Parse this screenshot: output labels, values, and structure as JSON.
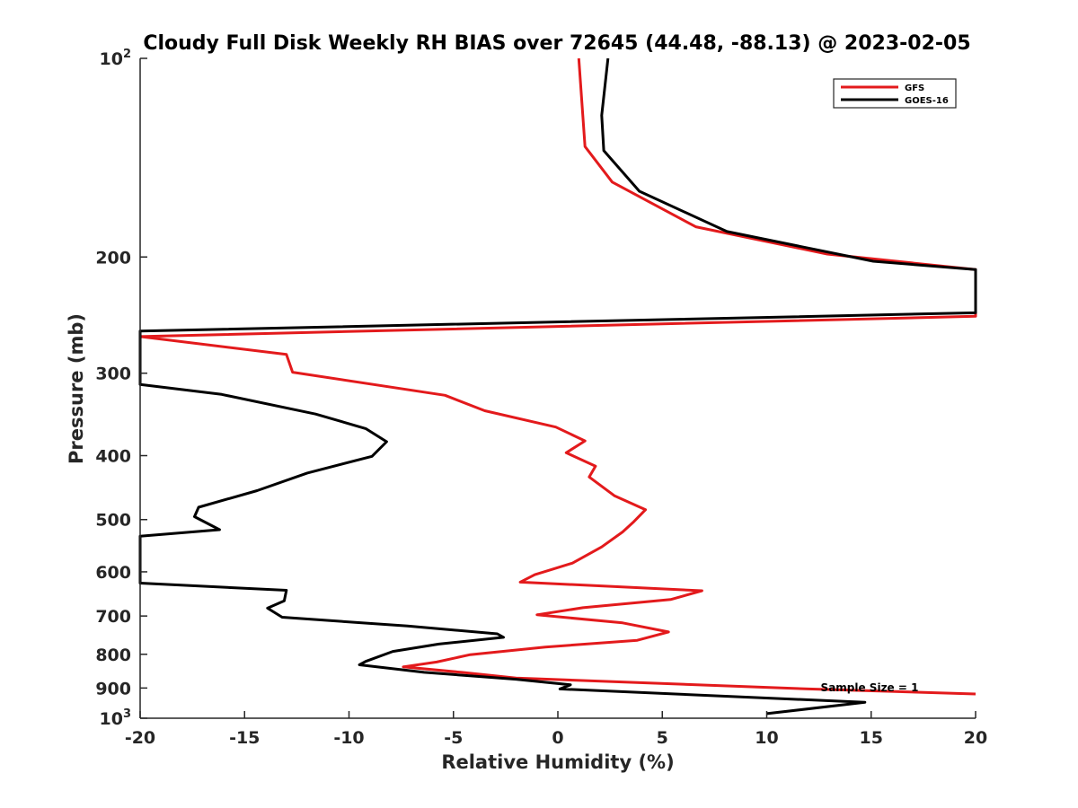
{
  "chart_data": {
    "type": "line",
    "title": "Cloudy Full Disk Weekly RH BIAS over 72645 (44.48, -88.13) @ 2023-02-05",
    "xlabel": "Relative Humidity (%)",
    "ylabel": "Pressure (mb)",
    "xlim": [
      -20,
      20
    ],
    "ylim": [
      100,
      1000
    ],
    "y_scale": "log",
    "y_reversed": true,
    "grid": false,
    "legend_position": "top-right",
    "x_ticks": [
      "-20",
      "-15",
      "-10",
      "-5",
      "0",
      "5",
      "10",
      "15",
      "20"
    ],
    "y_ticks": [
      {
        "value": 100,
        "base": "10",
        "exp": "2"
      },
      {
        "value": 200,
        "label": "200"
      },
      {
        "value": 300,
        "label": "300"
      },
      {
        "value": 400,
        "label": "400"
      },
      {
        "value": 500,
        "label": "500"
      },
      {
        "value": 600,
        "label": "600"
      },
      {
        "value": 700,
        "label": "700"
      },
      {
        "value": 800,
        "label": "800"
      },
      {
        "value": 900,
        "label": "900"
      },
      {
        "value": 1000,
        "base": "10",
        "exp": "3"
      }
    ],
    "series": [
      {
        "name": "GFS",
        "color": "#e31a1c",
        "points": [
          [
            1.0,
            100
          ],
          [
            1.3,
            136
          ],
          [
            2.6,
            154
          ],
          [
            6.6,
            180
          ],
          [
            12.9,
            198
          ],
          [
            20,
            209
          ],
          [
            20,
            246
          ],
          [
            -20,
            264
          ],
          [
            -13,
            281
          ],
          [
            -12.7,
            299
          ],
          [
            -5.4,
            324
          ],
          [
            -3.5,
            342
          ],
          [
            -0.1,
            362
          ],
          [
            1.3,
            380
          ],
          [
            0.4,
            396
          ],
          [
            1.8,
            415
          ],
          [
            1.5,
            431
          ],
          [
            2.7,
            460
          ],
          [
            4.2,
            483
          ],
          [
            3.6,
            505
          ],
          [
            3.1,
            522
          ],
          [
            2.1,
            550
          ],
          [
            0.7,
            582
          ],
          [
            -1.1,
            606
          ],
          [
            -1.8,
            622
          ],
          [
            6.9,
            641
          ],
          [
            5.4,
            661
          ],
          [
            1.2,
            680
          ],
          [
            -1.0,
            697
          ],
          [
            3.1,
            717
          ],
          [
            5.3,
            740
          ],
          [
            3.8,
            762
          ],
          [
            -0.6,
            780
          ],
          [
            -4.2,
            801
          ],
          [
            -5.8,
            822
          ],
          [
            -7.4,
            836
          ],
          [
            -4.6,
            852
          ],
          [
            -2.0,
            869
          ],
          [
            12.0,
            903
          ],
          [
            20,
            919
          ]
        ]
      },
      {
        "name": "GOES-16",
        "color": "#000000",
        "points": [
          [
            2.4,
            100
          ],
          [
            2.1,
            122
          ],
          [
            2.2,
            138
          ],
          [
            3.9,
            159
          ],
          [
            8.1,
            183
          ],
          [
            15.1,
            203
          ],
          [
            20,
            209
          ],
          [
            20,
            243
          ],
          [
            -20,
            259
          ],
          [
            -20,
            312
          ],
          [
            -16.1,
            323
          ],
          [
            -11.6,
            346
          ],
          [
            -9.2,
            364
          ],
          [
            -8.2,
            381
          ],
          [
            -8.9,
            401
          ],
          [
            -12.0,
            425
          ],
          [
            -14.4,
            452
          ],
          [
            -17.2,
            479
          ],
          [
            -17.4,
            495
          ],
          [
            -16.2,
            518
          ],
          [
            -20,
            530
          ],
          [
            -20,
            624
          ],
          [
            -13.0,
            640
          ],
          [
            -13.1,
            664
          ],
          [
            -13.9,
            681
          ],
          [
            -13.2,
            703
          ],
          [
            -7.2,
            725
          ],
          [
            -2.9,
            745
          ],
          [
            -2.6,
            754
          ],
          [
            -5.7,
            772
          ],
          [
            -7.9,
            792
          ],
          [
            -9.2,
            820
          ],
          [
            -9.5,
            830
          ],
          [
            -6.4,
            852
          ],
          [
            -2.0,
            873
          ],
          [
            0.6,
            890
          ],
          [
            0.1,
            903
          ],
          [
            14.7,
            946
          ],
          [
            10.0,
            984
          ]
        ]
      }
    ],
    "annotation": "Sample Size = 1"
  }
}
